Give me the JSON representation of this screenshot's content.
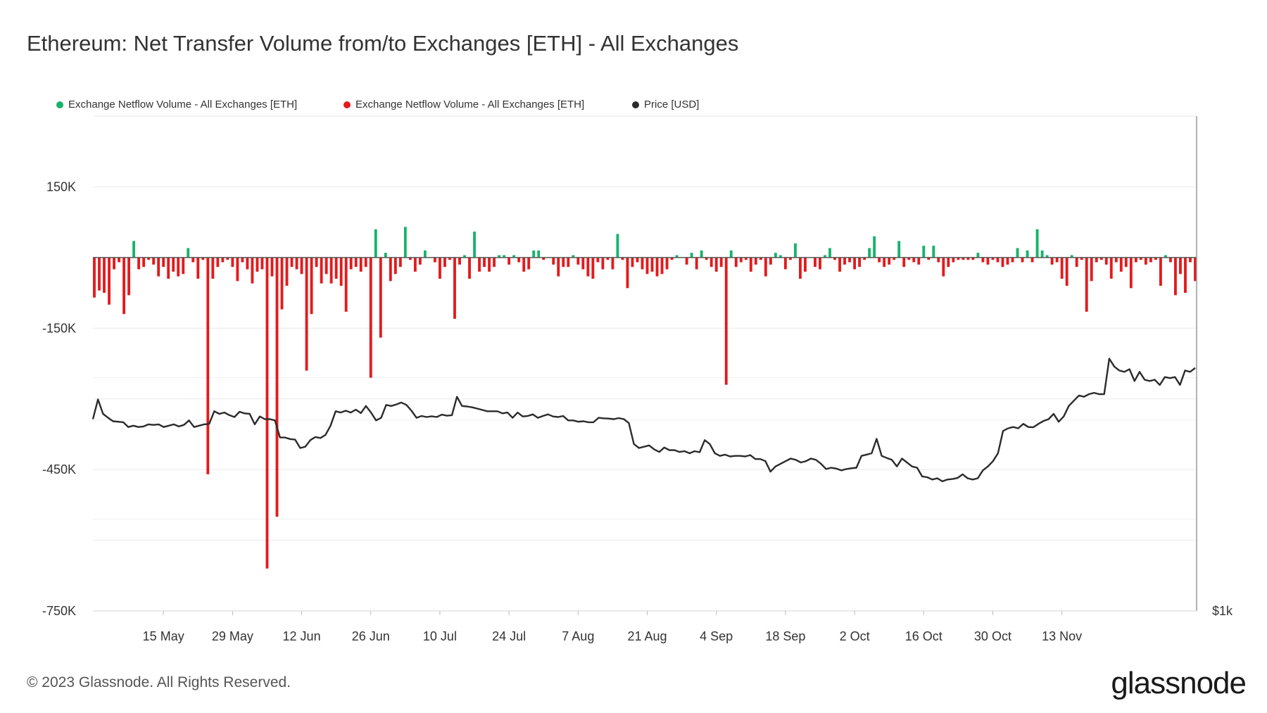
{
  "title": "Ethereum: Net Transfer Volume from/to Exchanges [ETH] - All Exchanges",
  "footer": "© 2023 Glassnode. All Rights Reserved.",
  "brand": "glassnode",
  "colors": {
    "positive": "#16b36b",
    "negative": "#e31a1c",
    "price": "#2b2b2b",
    "grid": "#e9e9e9"
  },
  "chart_data": {
    "type": "bar",
    "legend": [
      {
        "label": "Exchange Netflow Volume - All Exchanges [ETH]",
        "color": "#16b36b"
      },
      {
        "label": "Exchange Netflow Volume - All Exchanges [ETH]",
        "color": "#e31a1c"
      },
      {
        "label": "Price [USD]",
        "color": "#2b2b2b"
      }
    ],
    "legend_position": "top-left",
    "y_ticks": [
      {
        "value": 150000,
        "label": "150K"
      },
      {
        "value": -150000,
        "label": "-150K"
      },
      {
        "value": -450000,
        "label": "-450K"
      },
      {
        "value": -750000,
        "label": "-750K"
      }
    ],
    "ylim": [
      -750000,
      300000
    ],
    "right_axis_label": "$1k",
    "x_ticks": [
      {
        "day": 14,
        "label": "15 May"
      },
      {
        "day": 28,
        "label": "29 May"
      },
      {
        "day": 42,
        "label": "12 Jun"
      },
      {
        "day": 56,
        "label": "26 Jun"
      },
      {
        "day": 70,
        "label": "10 Jul"
      },
      {
        "day": 84,
        "label": "24 Jul"
      },
      {
        "day": 98,
        "label": "7 Aug"
      },
      {
        "day": 112,
        "label": "21 Aug"
      },
      {
        "day": 126,
        "label": "4 Sep"
      },
      {
        "day": 140,
        "label": "18 Sep"
      },
      {
        "day": 154,
        "label": "2 Oct"
      },
      {
        "day": 168,
        "label": "16 Oct"
      },
      {
        "day": 182,
        "label": "30 Oct"
      },
      {
        "day": 196,
        "label": "13 Nov"
      }
    ],
    "grid": true,
    "netflow_eth": [
      -85000,
      -70000,
      -75000,
      -100000,
      -25000,
      -10000,
      -120000,
      -80000,
      35000,
      -25000,
      -20000,
      -5000,
      -15000,
      -40000,
      -20000,
      -45000,
      -30000,
      -40000,
      -35000,
      20000,
      -10000,
      -45000,
      -5000,
      -460000,
      -45000,
      -20000,
      -10000,
      -5000,
      -20000,
      -50000,
      -10000,
      -25000,
      -55000,
      -30000,
      -25000,
      -660000,
      -40000,
      -550000,
      -110000,
      -60000,
      -20000,
      -25000,
      -35000,
      -240000,
      -120000,
      -20000,
      -55000,
      -35000,
      -55000,
      -45000,
      -60000,
      -115000,
      -25000,
      -20000,
      -30000,
      -20000,
      -255000,
      60000,
      -170000,
      10000,
      -50000,
      -35000,
      -20000,
      65000,
      -5000,
      -30000,
      -15000,
      15000,
      0,
      -10000,
      -45000,
      -20000,
      -5000,
      -130000,
      -15000,
      5000,
      -45000,
      55000,
      -30000,
      -20000,
      -30000,
      -20000,
      5000,
      5000,
      -15000,
      5000,
      -10000,
      -30000,
      -25000,
      15000,
      15000,
      -5000,
      0,
      -15000,
      -40000,
      -20000,
      -20000,
      5000,
      -15000,
      -25000,
      -40000,
      -45000,
      -10000,
      -25000,
      -5000,
      -25000,
      50000,
      -5000,
      -65000,
      -20000,
      -10000,
      -25000,
      -35000,
      -30000,
      -40000,
      -35000,
      -25000,
      -5000,
      5000,
      0,
      -15000,
      10000,
      -25000,
      15000,
      -5000,
      -20000,
      -30000,
      -20000,
      -270000,
      15000,
      -20000,
      -10000,
      -5000,
      -30000,
      -15000,
      -5000,
      -40000,
      -15000,
      10000,
      5000,
      -25000,
      -5000,
      30000,
      -45000,
      -30000,
      0,
      -20000,
      -25000,
      5000,
      20000,
      -5000,
      -30000,
      -15000,
      -10000,
      -25000,
      -20000,
      -5000,
      20000,
      45000,
      -10000,
      -20000,
      -15000,
      -5000,
      35000,
      -20000,
      -5000,
      -10000,
      -15000,
      25000,
      -5000,
      25000,
      -10000,
      -40000,
      -20000,
      -10000,
      -5000,
      -5000,
      -5000,
      -5000,
      10000,
      -10000,
      -15000,
      -5000,
      -10000,
      -20000,
      -15000,
      -10000,
      20000,
      -10000,
      15000,
      -10000,
      60000,
      15000,
      5000,
      -15000,
      -10000,
      -45000,
      -60000,
      5000,
      -20000,
      -5000,
      -115000,
      -50000,
      -10000,
      -5000,
      -15000,
      -45000,
      -10000,
      -30000,
      -20000,
      -65000,
      -10000,
      -5000,
      -15000,
      -10000,
      -5000,
      -60000,
      5000,
      -10000,
      -80000,
      -35000,
      -75000,
      -10000,
      -50000
    ],
    "price_usd": [
      1830,
      1905,
      1850,
      1835,
      1822,
      1820,
      1818,
      1800,
      1805,
      1800,
      1802,
      1810,
      1808,
      1810,
      1800,
      1805,
      1810,
      1802,
      1808,
      1825,
      1800,
      1805,
      1810,
      1812,
      1860,
      1850,
      1855,
      1845,
      1838,
      1858,
      1852,
      1850,
      1810,
      1840,
      1830,
      1830,
      1825,
      1760,
      1760,
      1754,
      1752,
      1720,
      1725,
      1750,
      1762,
      1758,
      1770,
      1805,
      1860,
      1855,
      1862,
      1855,
      1866,
      1853,
      1880,
      1855,
      1825,
      1835,
      1884,
      1880,
      1886,
      1893,
      1884,
      1862,
      1835,
      1842,
      1838,
      1841,
      1838,
      1847,
      1843,
      1845,
      1915,
      1880,
      1878,
      1875,
      1870,
      1865,
      1860,
      1860,
      1860,
      1852,
      1855,
      1835,
      1855,
      1840,
      1842,
      1848,
      1835,
      1842,
      1848,
      1840,
      1838,
      1842,
      1825,
      1825,
      1820,
      1822,
      1818,
      1818,
      1835,
      1833,
      1832,
      1830,
      1834,
      1830,
      1815,
      1735,
      1720,
      1725,
      1730,
      1715,
      1705,
      1722,
      1712,
      1712,
      1705,
      1708,
      1700,
      1708,
      1704,
      1750,
      1735,
      1700,
      1690,
      1695,
      1688,
      1690,
      1690,
      1688,
      1693,
      1678,
      1678,
      1670,
      1630,
      1650,
      1660,
      1670,
      1680,
      1675,
      1665,
      1670,
      1680,
      1675,
      1660,
      1640,
      1645,
      1642,
      1635,
      1640,
      1643,
      1645,
      1690,
      1695,
      1700,
      1755,
      1690,
      1682,
      1675,
      1650,
      1680,
      1665,
      1650,
      1645,
      1612,
      1609,
      1600,
      1605,
      1593,
      1600,
      1602,
      1606,
      1620,
      1605,
      1600,
      1605,
      1635,
      1650,
      1670,
      1700,
      1785,
      1795,
      1800,
      1795,
      1812,
      1800,
      1799,
      1812,
      1823,
      1830,
      1850,
      1820,
      1840,
      1880,
      1900,
      1920,
      1915,
      1925,
      1930,
      1925,
      1925,
      2060,
      2030,
      2015,
      2010,
      2020,
      1975,
      2010,
      1980,
      1975,
      1980,
      1960,
      1990,
      1986,
      1990,
      1960,
      2015,
      2010,
      2025
    ]
  }
}
